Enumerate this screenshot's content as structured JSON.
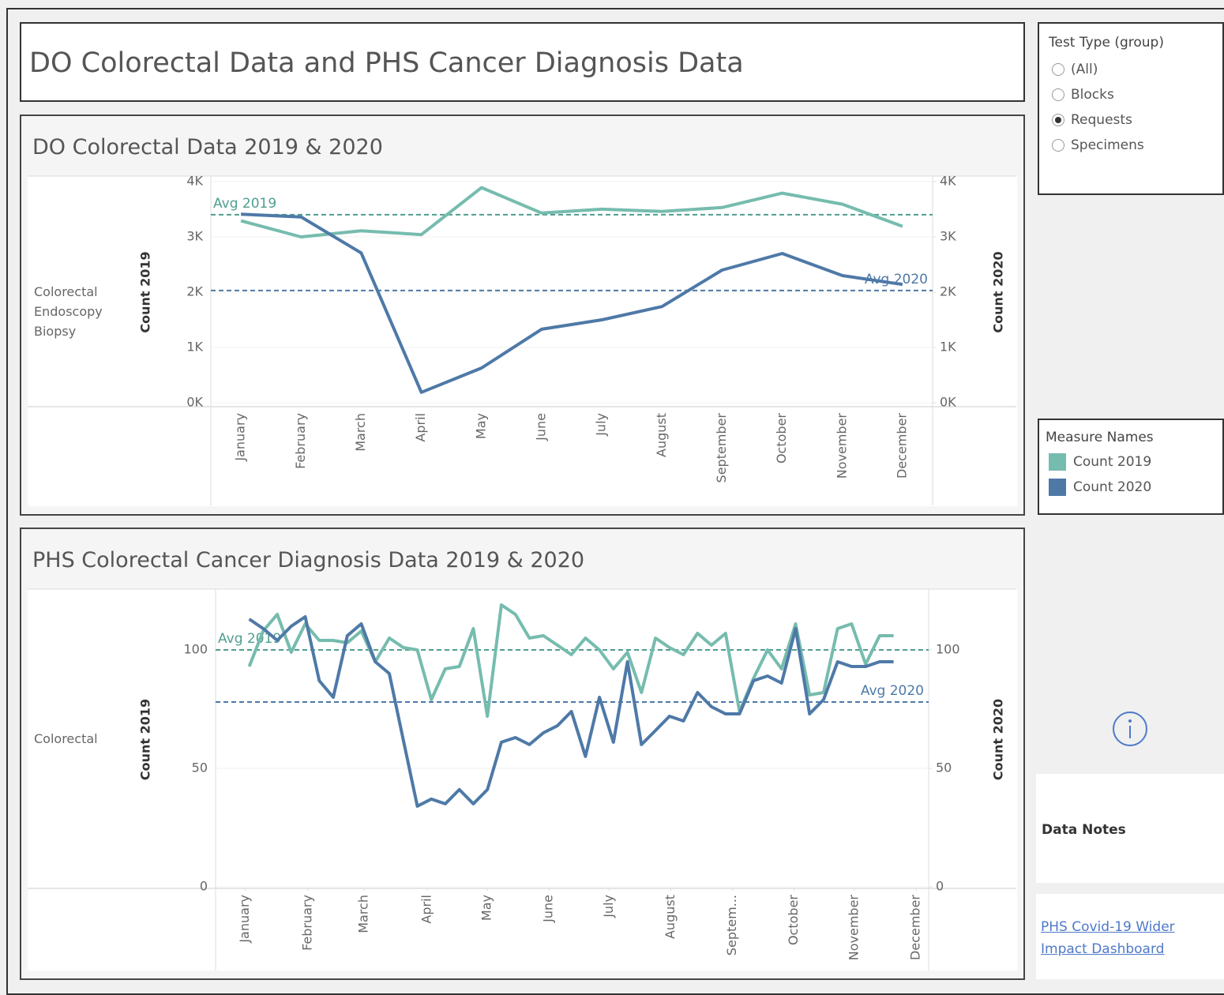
{
  "title": "DO Colorectal Data and PHS Cancer Diagnosis Data",
  "filter": {
    "title": "Test Type (group)",
    "options": [
      "(All)",
      "Blocks",
      "Requests",
      "Specimens"
    ],
    "selected": 2
  },
  "legend": {
    "title": "Measure Names"
  },
  "data_notes": {
    "title": "Data Notes"
  },
  "link": {
    "text": "PHS Covid-19 Wider Impact Dashboard"
  },
  "chart_data": [
    {
      "type": "line",
      "title": "DO Colorectal Data 2019 & 2020",
      "row_label": "Colorectal Endoscopy Biopsy",
      "y_label": "Count 2019",
      "y2_label": "Count 2020",
      "categories": [
        "January",
        "February",
        "March",
        "April",
        "May",
        "June",
        "July",
        "August",
        "September",
        "October",
        "November",
        "December"
      ],
      "series": [
        {
          "name": "Count 2019",
          "color": "#76bcae",
          "values": [
            3290,
            3000,
            3110,
            3040,
            3890,
            3430,
            3500,
            3460,
            3530,
            3790,
            3590,
            3190
          ]
        },
        {
          "name": "Count 2020",
          "color": "#4e79a7",
          "axis": "y2",
          "values": [
            3410,
            3360,
            2710,
            190,
            630,
            1330,
            1500,
            1740,
            2400,
            2700,
            2300,
            2140
          ]
        }
      ],
      "ylim": [
        -70,
        4070
      ],
      "yticks": [
        {
          "value": 0,
          "label": "0K"
        },
        {
          "value": 1000,
          "label": "1K"
        },
        {
          "value": 2000,
          "label": "2K"
        },
        {
          "value": 3000,
          "label": "3K"
        },
        {
          "value": 4000,
          "label": "4K"
        }
      ],
      "y2lim": [
        -70,
        4070
      ],
      "y2ticks": [
        {
          "value": 0,
          "label": "0K"
        },
        {
          "value": 1000,
          "label": "1K"
        },
        {
          "value": 2000,
          "label": "2K"
        },
        {
          "value": 3000,
          "label": "3K"
        },
        {
          "value": 4000,
          "label": "4K"
        }
      ],
      "grid": true,
      "reference_lines": [
        {
          "label": "Avg 2019",
          "value": 3400,
          "color": "#4f9e8f",
          "position": "left"
        },
        {
          "label": "Avg 2020",
          "value": 2030,
          "color": "#4e79a7",
          "position": "right"
        }
      ]
    },
    {
      "type": "line",
      "title": "PHS Colorectal Cancer Diagnosis Data 2019 & 2020",
      "row_label": "Colorectal",
      "y_label": "Count 2019",
      "y2_label": "Count 2020",
      "x": [
        1,
        2,
        3,
        4,
        5,
        6,
        7,
        8,
        9,
        10,
        11,
        12,
        13,
        14,
        15,
        16,
        17,
        18,
        19,
        20,
        21,
        22,
        23,
        24,
        25,
        26,
        27,
        28,
        29,
        30,
        31,
        32,
        33,
        34,
        35,
        36,
        37,
        38,
        39,
        40,
        41,
        42,
        43,
        44,
        45,
        46,
        47
      ],
      "xlim": [
        -1.4,
        49.5
      ],
      "xticks": [
        {
          "value": 0.7,
          "label": "January"
        },
        {
          "value": 5.2,
          "label": "February"
        },
        {
          "value": 9.2,
          "label": "March"
        },
        {
          "value": 13.7,
          "label": "April"
        },
        {
          "value": 18.0,
          "label": "May"
        },
        {
          "value": 22.4,
          "label": "June"
        },
        {
          "value": 26.7,
          "label": "July"
        },
        {
          "value": 31.1,
          "label": "August"
        },
        {
          "value": 35.5,
          "label": "Septem..."
        },
        {
          "value": 39.9,
          "label": "October"
        },
        {
          "value": 44.2,
          "label": "November"
        },
        {
          "value": 48.6,
          "label": "December"
        }
      ],
      "series": [
        {
          "name": "Count 2019",
          "color": "#76bcae",
          "values": [
            93,
            108,
            115,
            99,
            111,
            104,
            104,
            103,
            108,
            95,
            105,
            101,
            100,
            79,
            92,
            93,
            109,
            72,
            119,
            115,
            105,
            106,
            102,
            98,
            105,
            100,
            92,
            99,
            82,
            105,
            101,
            98,
            107,
            102,
            107,
            74,
            88,
            100,
            92,
            111,
            81,
            82,
            109,
            111,
            94,
            106,
            106
          ]
        },
        {
          "name": "Count 2020",
          "color": "#4e79a7",
          "axis": "y2",
          "values": [
            113,
            109,
            104,
            110,
            114,
            87,
            80,
            106,
            111,
            95,
            90,
            62,
            34,
            37,
            35,
            41,
            35,
            41,
            61,
            63,
            60,
            65,
            68,
            74,
            55,
            80,
            61,
            95,
            60,
            66,
            72,
            70,
            82,
            76,
            73,
            73,
            87,
            89,
            86,
            109,
            73,
            79,
            95,
            93,
            93,
            95,
            95
          ]
        }
      ],
      "ylim": [
        -0.7,
        125
      ],
      "yticks": [
        0,
        50,
        100
      ],
      "y2lim": [
        -0.7,
        125
      ],
      "y2ticks": [
        0,
        50,
        100
      ],
      "grid": true,
      "reference_lines": [
        {
          "label": "Avg 2019",
          "value": 100,
          "color": "#4f9e8f",
          "position": "left"
        },
        {
          "label": "Avg 2020",
          "value": 78,
          "color": "#4e79a7",
          "position": "right"
        }
      ]
    }
  ]
}
